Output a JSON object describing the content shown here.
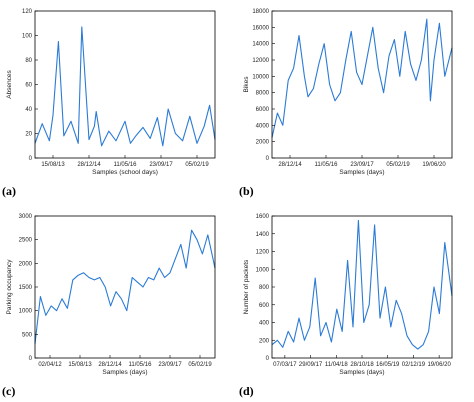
{
  "panel_labels": [
    "(a)",
    "(b)",
    "(c)",
    "(d)"
  ],
  "line_color": "#2b7bd6",
  "chart_data": [
    {
      "type": "line",
      "xlabel": "Samples (school days)",
      "ylabel": "Absences",
      "ylim": [
        0,
        120
      ],
      "yticks": [
        0,
        20,
        40,
        60,
        80,
        100,
        120
      ],
      "xticks": [
        "15/08/13",
        "28/12/14",
        "11/05/16",
        "23/09/17",
        "05/02/19"
      ],
      "grid": false,
      "series": [
        {
          "x": [
            0,
            0.04,
            0.08,
            0.1,
            0.13,
            0.16,
            0.2,
            0.24,
            0.26,
            0.3,
            0.33,
            0.34,
            0.37,
            0.41,
            0.45,
            0.5,
            0.53,
            0.56,
            0.6,
            0.64,
            0.68,
            0.71,
            0.74,
            0.78,
            0.82,
            0.86,
            0.9,
            0.94,
            0.97,
            1.0
          ],
          "values": [
            12,
            28,
            14,
            35,
            95,
            18,
            30,
            12,
            107,
            15,
            26,
            38,
            10,
            22,
            14,
            30,
            12,
            18,
            25,
            16,
            33,
            10,
            40,
            20,
            14,
            34,
            12,
            26,
            43,
            15
          ]
        }
      ]
    },
    {
      "type": "line",
      "xlabel": "Samples (days)",
      "ylabel": "Bikes",
      "ylim": [
        0,
        18000
      ],
      "yticks": [
        0,
        2000,
        4000,
        6000,
        8000,
        10000,
        12000,
        14000,
        16000,
        18000
      ],
      "xticks": [
        "28/12/14",
        "11/05/16",
        "23/09/17",
        "05/02/19",
        "19/06/20"
      ],
      "grid": false,
      "series": [
        {
          "x": [
            0,
            0.03,
            0.06,
            0.09,
            0.12,
            0.15,
            0.18,
            0.2,
            0.23,
            0.26,
            0.29,
            0.32,
            0.35,
            0.38,
            0.41,
            0.44,
            0.47,
            0.5,
            0.53,
            0.56,
            0.59,
            0.62,
            0.65,
            0.68,
            0.71,
            0.74,
            0.77,
            0.8,
            0.83,
            0.86,
            0.88,
            0.9,
            0.93,
            0.96,
            1.0
          ],
          "values": [
            2500,
            5500,
            4000,
            9500,
            11000,
            15000,
            10000,
            7500,
            8500,
            11500,
            14000,
            9000,
            7000,
            8000,
            12000,
            15500,
            10500,
            9000,
            12500,
            16000,
            11000,
            8000,
            12500,
            14500,
            10000,
            15500,
            11500,
            9500,
            12000,
            17000,
            7000,
            12000,
            16500,
            10000,
            13500
          ]
        }
      ]
    },
    {
      "type": "line",
      "xlabel": "Samples (days)",
      "ylabel": "Parking occupancy",
      "ylim": [
        0,
        3000
      ],
      "yticks": [
        0,
        500,
        1000,
        1500,
        2000,
        2500,
        3000
      ],
      "xticks": [
        "02/04/12",
        "15/08/13",
        "28/12/14",
        "11/05/16",
        "23/09/17",
        "05/02/19"
      ],
      "grid": false,
      "series": [
        {
          "x": [
            0,
            0.03,
            0.06,
            0.09,
            0.12,
            0.15,
            0.18,
            0.21,
            0.24,
            0.27,
            0.3,
            0.33,
            0.36,
            0.39,
            0.42,
            0.45,
            0.48,
            0.51,
            0.54,
            0.57,
            0.6,
            0.63,
            0.66,
            0.69,
            0.72,
            0.75,
            0.78,
            0.81,
            0.84,
            0.87,
            0.9,
            0.93,
            0.96,
            1.0
          ],
          "values": [
            300,
            1300,
            900,
            1100,
            1000,
            1250,
            1050,
            1650,
            1750,
            1800,
            1700,
            1650,
            1700,
            1500,
            1100,
            1400,
            1250,
            1000,
            1700,
            1600,
            1500,
            1700,
            1650,
            1900,
            1700,
            1800,
            2100,
            2400,
            1900,
            2700,
            2500,
            2200,
            2600,
            1900
          ]
        }
      ]
    },
    {
      "type": "line",
      "xlabel": "Samples (days)",
      "ylabel": "Number of packets",
      "ylim": [
        0,
        1600
      ],
      "yticks": [
        0,
        200,
        400,
        600,
        800,
        1000,
        1200,
        1400,
        1600
      ],
      "xticks": [
        "07/03/17",
        "29/09/17",
        "11/04/18",
        "28/10/18",
        "16/05/19",
        "02/12/19",
        "19/06/20"
      ],
      "grid": false,
      "series": [
        {
          "x": [
            0,
            0.03,
            0.06,
            0.09,
            0.12,
            0.15,
            0.18,
            0.21,
            0.24,
            0.27,
            0.3,
            0.33,
            0.36,
            0.39,
            0.42,
            0.45,
            0.48,
            0.51,
            0.54,
            0.57,
            0.6,
            0.63,
            0.66,
            0.69,
            0.72,
            0.75,
            0.78,
            0.81,
            0.84,
            0.87,
            0.9,
            0.93,
            0.96,
            1.0
          ],
          "values": [
            150,
            200,
            120,
            300,
            180,
            450,
            200,
            350,
            900,
            250,
            400,
            180,
            550,
            300,
            1100,
            350,
            1550,
            400,
            600,
            1500,
            450,
            800,
            350,
            650,
            500,
            250,
            150,
            100,
            150,
            300,
            800,
            500,
            1300,
            700
          ]
        }
      ]
    }
  ]
}
